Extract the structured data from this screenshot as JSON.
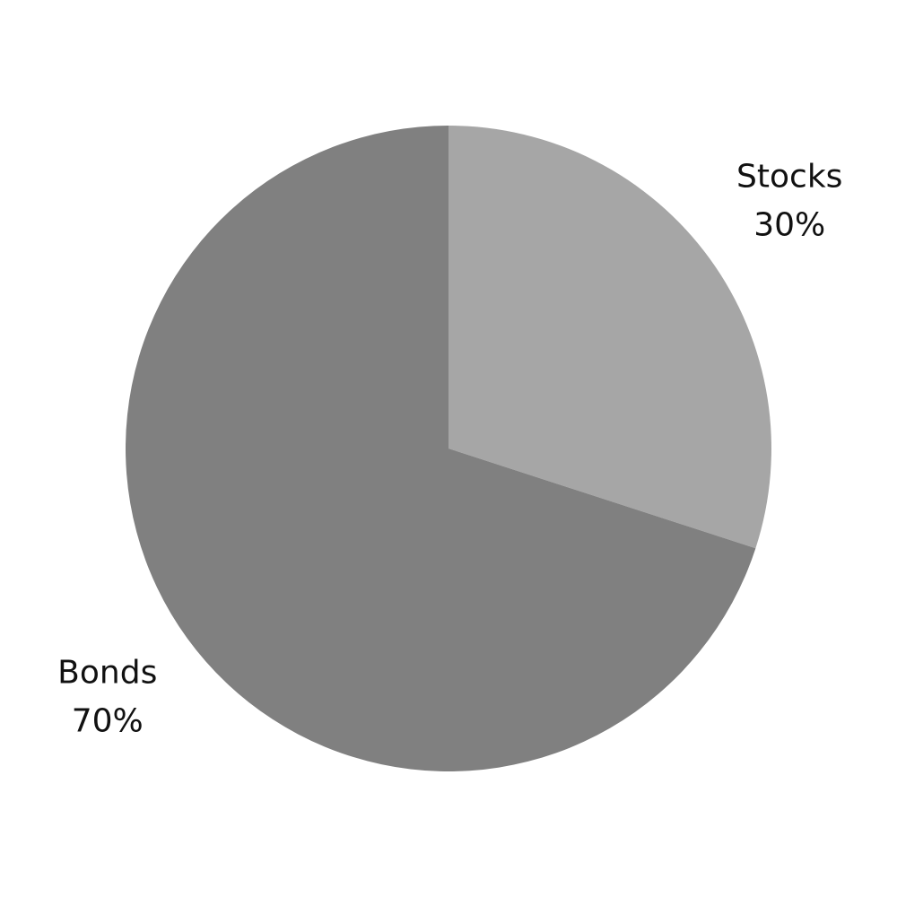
{
  "chart_data": {
    "type": "pie",
    "title": "",
    "start": "top",
    "direction": "clockwise",
    "slices": [
      {
        "label": "Stocks",
        "value": 30,
        "value_label": "30%",
        "color": "#a6a6a6"
      },
      {
        "label": "Bonds",
        "value": 70,
        "value_label": "70%",
        "color": "#808080"
      }
    ]
  }
}
